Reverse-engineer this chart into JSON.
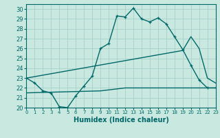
{
  "title": "",
  "xlabel": "Humidex (Indice chaleur)",
  "ylabel": "",
  "xlim": [
    0,
    23
  ],
  "ylim": [
    20,
    30.5
  ],
  "yticks": [
    20,
    21,
    22,
    23,
    24,
    25,
    26,
    27,
    28,
    29,
    30
  ],
  "xticks": [
    0,
    1,
    2,
    3,
    4,
    5,
    6,
    7,
    8,
    9,
    10,
    11,
    12,
    13,
    14,
    15,
    16,
    17,
    18,
    19,
    20,
    21,
    22,
    23
  ],
  "bg_color": "#c8e8e0",
  "grid_color": "#aad4cc",
  "line_color": "#006868",
  "line1_x": [
    0,
    1,
    2,
    3,
    4,
    5,
    6,
    7,
    8,
    9,
    10,
    11,
    12,
    13,
    14,
    15,
    16,
    17,
    18,
    19,
    20,
    21,
    22,
    23
  ],
  "line1_y": [
    23.0,
    22.5,
    21.7,
    21.5,
    20.1,
    20.0,
    21.2,
    22.2,
    23.2,
    26.0,
    26.5,
    29.3,
    29.2,
    30.1,
    29.0,
    28.7,
    29.1,
    28.5,
    27.2,
    25.9,
    24.3,
    22.8,
    22.0,
    22.0
  ],
  "line2_x": [
    0,
    19,
    20,
    21,
    22,
    23
  ],
  "line2_y": [
    23.0,
    25.8,
    27.2,
    26.0,
    23.0,
    22.5
  ],
  "line3_x": [
    0,
    9,
    10,
    11,
    12,
    13,
    14,
    15,
    16,
    17,
    18,
    19,
    20,
    21,
    22,
    23
  ],
  "line3_y": [
    21.5,
    21.7,
    21.8,
    21.9,
    22.0,
    22.0,
    22.0,
    22.0,
    22.0,
    22.0,
    22.0,
    22.0,
    22.0,
    22.0,
    22.0,
    22.0
  ]
}
